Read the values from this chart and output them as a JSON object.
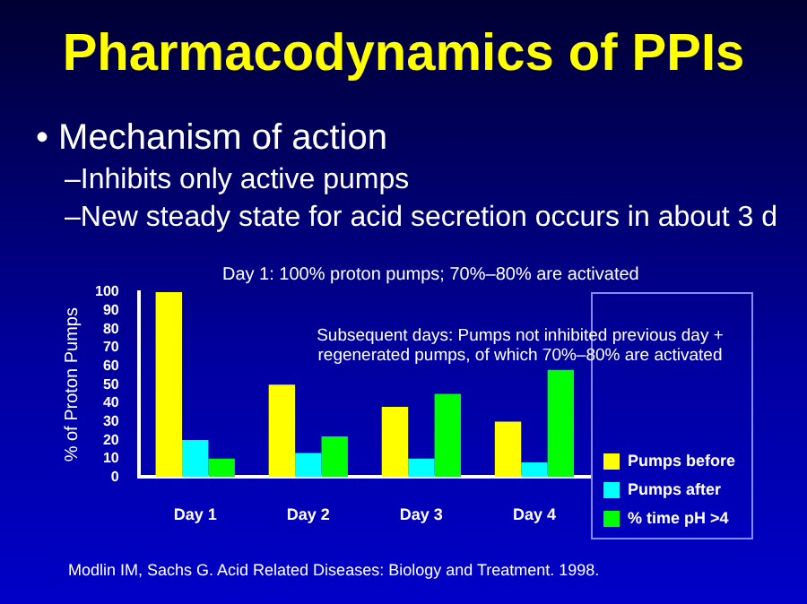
{
  "chart_data": {
    "type": "bar",
    "title": "Pharmacodynamics of PPIs",
    "ylabel": "% of Proton Pumps",
    "annotations": [
      "• Mechanism of action",
      "–Inhibits only active pumps",
      "–New steady state for acid secretion occurs in about 3 d",
      "Day 1: 100% proton pumps; 70%–80% are activated",
      "Subsequent days: Pumps not inhibited previous day + regenerated pumps, of which 70%–80% are activated",
      "Modlin IM, Sachs G. Acid Related Diseases: Biology and Treatment. 1998."
    ],
    "categories": [
      "Day 1",
      "Day 2",
      "Day 3",
      "Day 4"
    ],
    "series": [
      {
        "name": "Pumps before",
        "color": "#ffff00",
        "values": [
          100,
          50,
          38,
          30
        ]
      },
      {
        "name": "Pumps after",
        "color": "#00ffff",
        "values": [
          20,
          13,
          10,
          8
        ]
      },
      {
        "name": "% time pH >4",
        "color": "#00ff00",
        "values": [
          10,
          22,
          45,
          58
        ]
      }
    ],
    "ylim": [
      0,
      100
    ],
    "yticks": [
      0,
      10,
      20,
      30,
      40,
      50,
      60,
      70,
      80,
      90,
      100
    ],
    "grid": false,
    "legend": "right"
  }
}
